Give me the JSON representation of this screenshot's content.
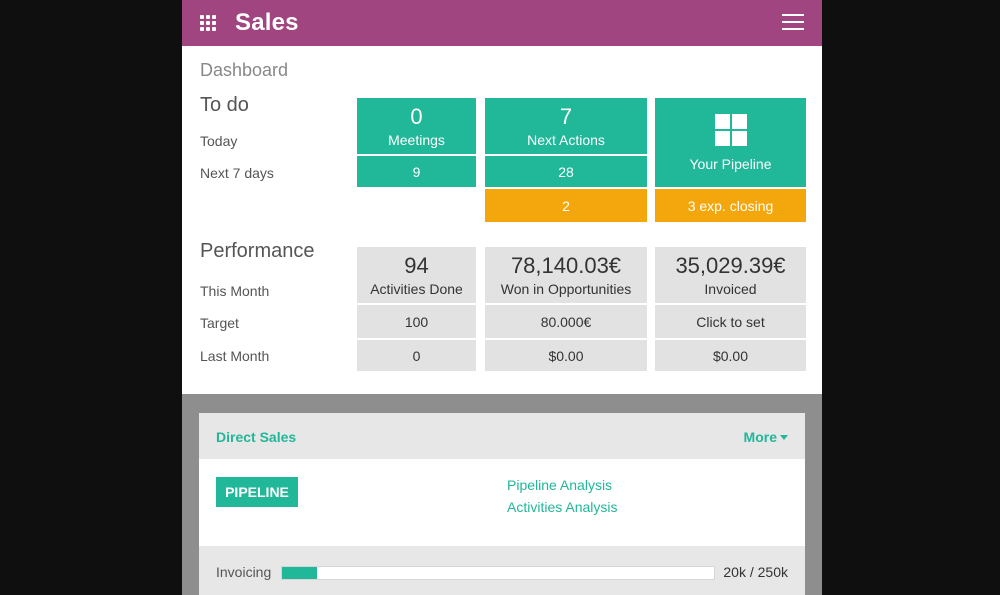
{
  "header": {
    "app_title": "Sales",
    "apps_icon": "apps-grid-icon",
    "menu_icon": "hamburger-menu-icon",
    "color": "#a0457f"
  },
  "breadcrumb": "Dashboard",
  "todo": {
    "title": "To do",
    "rows": [
      "Today",
      "Next 7 days"
    ],
    "meetings": {
      "today": "0",
      "label": "Meetings",
      "next7": "9"
    },
    "next_actions": {
      "today": "7",
      "label": "Next Actions",
      "next7": "28",
      "overdue": "2"
    },
    "pipeline": {
      "icon": "pipeline-grid-icon",
      "label": "Your Pipeline",
      "closing": "3 exp. closing"
    }
  },
  "performance": {
    "title": "Performance",
    "rows": [
      "This Month",
      "Target",
      "Last Month"
    ],
    "activities": {
      "value": "94",
      "label": "Activities Done",
      "target": "100",
      "last": "0"
    },
    "won": {
      "value": "78,140.03€",
      "label": "Won in Opportunities",
      "target": "80.000€",
      "last": "$0.00"
    },
    "invoiced": {
      "value": "35,029.39€",
      "label": "Invoiced",
      "target": "Click to set",
      "last": "$0.00"
    }
  },
  "direct_sales": {
    "title": "Direct Sales",
    "more": "More",
    "pipeline_button": "PIPELINE",
    "links": [
      "Pipeline Analysis",
      "Activities Analysis"
    ],
    "invoicing": {
      "label": "Invoicing",
      "value": "20k / 250k",
      "progress_fraction": 0.08
    }
  },
  "colors": {
    "accent": "#21b799",
    "warning": "#f4a60d",
    "neutral": "#e2e2e2"
  }
}
